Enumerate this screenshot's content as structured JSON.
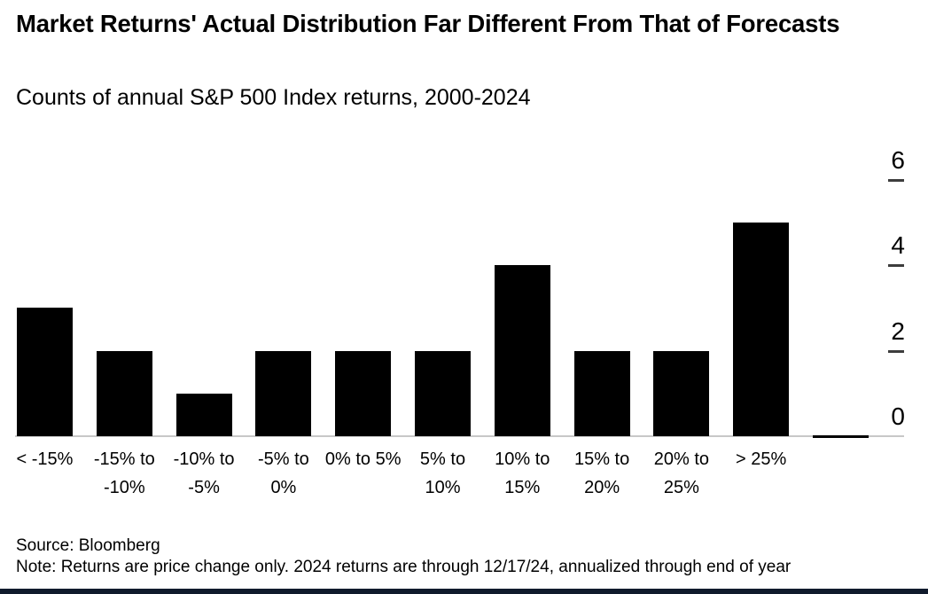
{
  "header": {
    "title": "Market Returns' Actual Distribution Far Different From That of Forecasts",
    "subtitle": "Counts of annual S&P 500 Index returns, 2000-2024"
  },
  "footer": {
    "source": "Source: Bloomberg",
    "note": "Note: Returns are price change only. 2024 returns are through 12/17/24, annualized through end of year"
  },
  "colors": {
    "bar": "#000000",
    "axis_line": "#c8c8c8",
    "tick_mark": "#3d3d3d",
    "text": "#000000",
    "bottom_accent_bar": "#101a2c"
  },
  "chart_data": {
    "type": "bar",
    "title": "Market Returns' Actual Distribution Far Different From That of Forecasts",
    "subtitle": "Counts of annual S&P 500 Index returns, 2000-2024",
    "categories": [
      "< -15%",
      "-15% to -10%",
      "-10% to -5%",
      "-5% to 0%",
      "0% to 5%",
      "5% to 10%",
      "10% to 15%",
      "15% to 20%",
      "20% to 25%",
      "> 25%",
      ""
    ],
    "values": [
      3,
      2,
      1,
      2,
      2,
      2,
      4,
      2,
      2,
      5,
      0
    ],
    "xlabel": "",
    "ylabel": "",
    "ylim": [
      0,
      6
    ],
    "yticks": [
      0,
      2,
      4,
      6
    ],
    "y_axis_side": "right",
    "grid": false,
    "legend": null,
    "bar_color": "#000000",
    "background": "#ffffff"
  }
}
